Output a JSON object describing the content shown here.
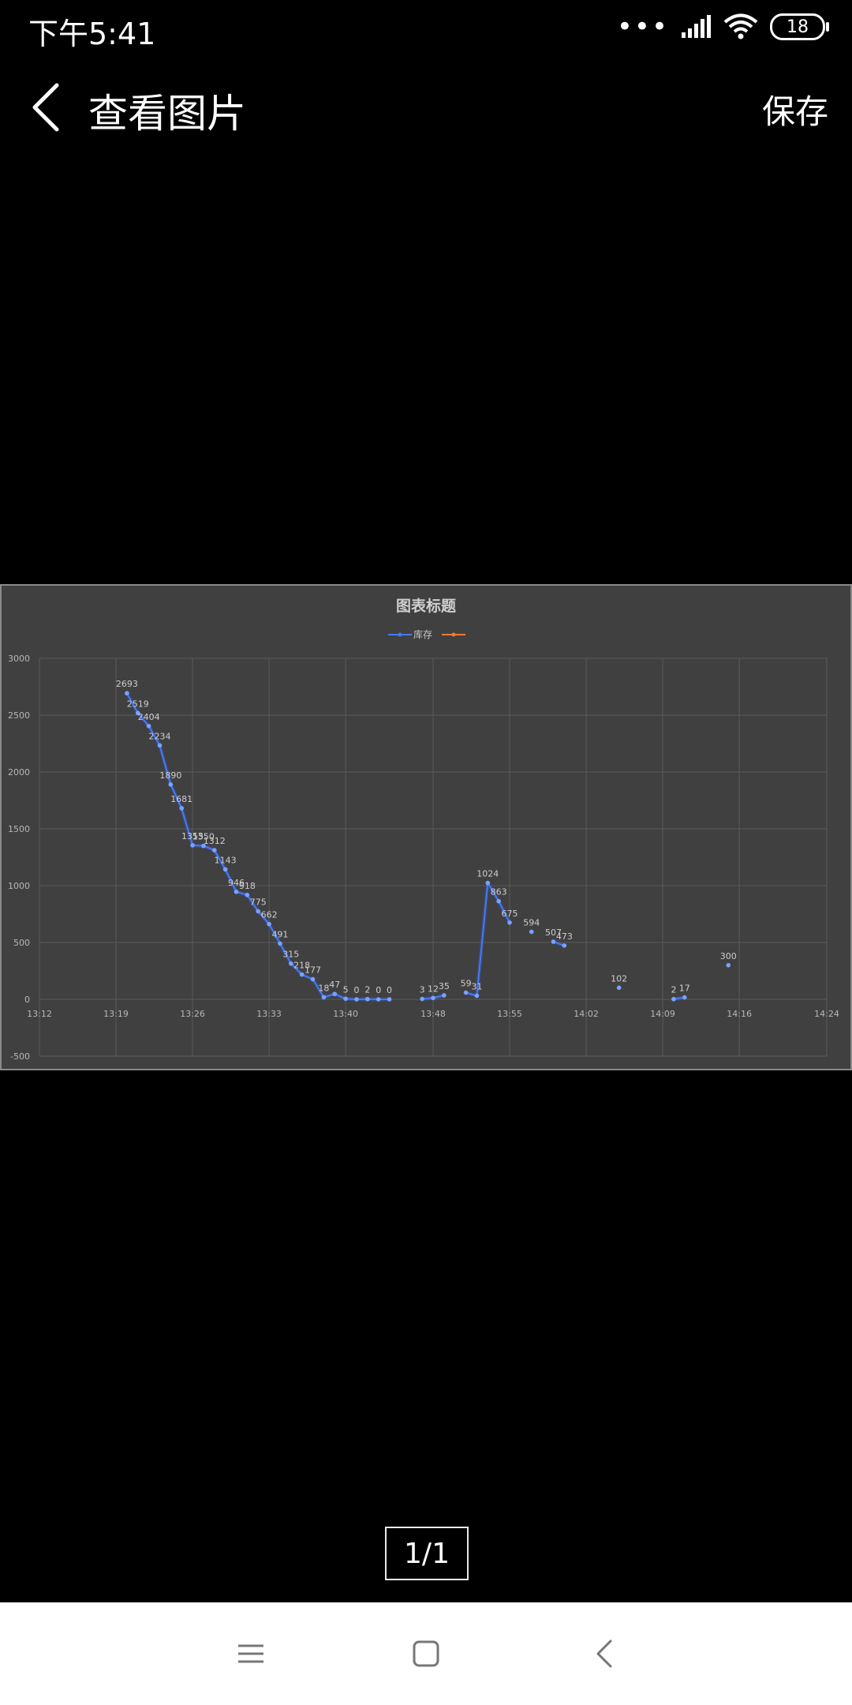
{
  "status_bar": {
    "time": "下午5:41",
    "battery_level": "18",
    "icons": [
      "more-dots-icon",
      "signal-icon",
      "wifi-icon",
      "battery-icon"
    ]
  },
  "app_bar": {
    "title": "查看图片",
    "save_label": "保存",
    "back_icon": "chevron-left-icon"
  },
  "viewer": {
    "page_counter": "1/1"
  },
  "nav_bar": {
    "icons": [
      "menu-icon",
      "home-icon",
      "back-icon"
    ]
  },
  "colors": {
    "background": "#000000",
    "chart_background": "#404040",
    "series_stock": "#4a78f0",
    "series_2": "#ed7d31",
    "nav_bar": "#ffffff"
  },
  "chart_data": {
    "type": "line",
    "title": "图表标题",
    "legend": {
      "placement": "top",
      "entries": [
        "库存",
        ""
      ]
    },
    "xlabel": "",
    "ylabel": "",
    "xticks": [
      "13:12",
      "13:19",
      "13:26",
      "13:33",
      "13:40",
      "13:48",
      "13:55",
      "14:02",
      "14:09",
      "14:16",
      "14:24"
    ],
    "yticks": [
      -500,
      0,
      500,
      1000,
      1500,
      2000,
      2500,
      3000
    ],
    "xlim": [
      "13:12",
      "14:24"
    ],
    "ylim": [
      -500,
      3000
    ],
    "grid": true,
    "series": [
      {
        "name": "库存",
        "segments": [
          [
            {
              "t": "13:20",
              "y": 2693,
              "label": "2693"
            },
            {
              "t": "13:21",
              "y": 2519,
              "label": "2519"
            },
            {
              "t": "13:22",
              "y": 2404,
              "label": "2404"
            },
            {
              "t": "13:23",
              "y": 2234,
              "label": "2234"
            },
            {
              "t": "13:24",
              "y": 1890,
              "label": "1890"
            },
            {
              "t": "13:25",
              "y": 1681,
              "label": "1681"
            },
            {
              "t": "13:26",
              "y": 1355,
              "label": "1355"
            },
            {
              "t": "13:27",
              "y": 1350,
              "label": "1350"
            },
            {
              "t": "13:28",
              "y": 1312,
              "label": "1312"
            },
            {
              "t": "13:29",
              "y": 1143,
              "label": "1143"
            },
            {
              "t": "13:30",
              "y": 946,
              "label": "946"
            },
            {
              "t": "13:31",
              "y": 918,
              "label": "918"
            },
            {
              "t": "13:32",
              "y": 775,
              "label": "775"
            },
            {
              "t": "13:33",
              "y": 662,
              "label": "662"
            },
            {
              "t": "13:34",
              "y": 491,
              "label": "491"
            },
            {
              "t": "13:35",
              "y": 315,
              "label": "315"
            },
            {
              "t": "13:36",
              "y": 218,
              "label": "218"
            },
            {
              "t": "13:37",
              "y": 177,
              "label": "177"
            },
            {
              "t": "13:38",
              "y": 18,
              "label": "18"
            },
            {
              "t": "13:39",
              "y": 47,
              "label": "47"
            },
            {
              "t": "13:40",
              "y": 5,
              "label": "5"
            },
            {
              "t": "13:41",
              "y": 0,
              "label": "0"
            },
            {
              "t": "13:42",
              "y": 2,
              "label": "2"
            },
            {
              "t": "13:43",
              "y": 0,
              "label": "0"
            },
            {
              "t": "13:44",
              "y": 0,
              "label": "0"
            }
          ],
          [
            {
              "t": "13:47",
              "y": 3,
              "label": "3"
            },
            {
              "t": "13:48",
              "y": 12,
              "label": "12"
            },
            {
              "t": "13:49",
              "y": 35,
              "label": "35"
            }
          ],
          [
            {
              "t": "13:51",
              "y": 59,
              "label": "59"
            },
            {
              "t": "13:52",
              "y": 31,
              "label": "31"
            },
            {
              "t": "13:53",
              "y": 1024,
              "label": "1024"
            },
            {
              "t": "13:54",
              "y": 863,
              "label": "863"
            },
            {
              "t": "13:55",
              "y": 675,
              "label": "675"
            }
          ],
          [
            {
              "t": "13:57",
              "y": 594,
              "label": "594"
            }
          ],
          [
            {
              "t": "13:59",
              "y": 507,
              "label": "507"
            },
            {
              "t": "14:00",
              "y": 473,
              "label": "473"
            }
          ],
          [
            {
              "t": "14:05",
              "y": 102,
              "label": "102"
            }
          ],
          [
            {
              "t": "14:10",
              "y": 2,
              "label": "2"
            },
            {
              "t": "14:11",
              "y": 17,
              "label": "17"
            }
          ],
          [
            {
              "t": "14:15",
              "y": 300,
              "label": "300"
            }
          ]
        ]
      },
      {
        "name": "",
        "segments": []
      }
    ]
  }
}
